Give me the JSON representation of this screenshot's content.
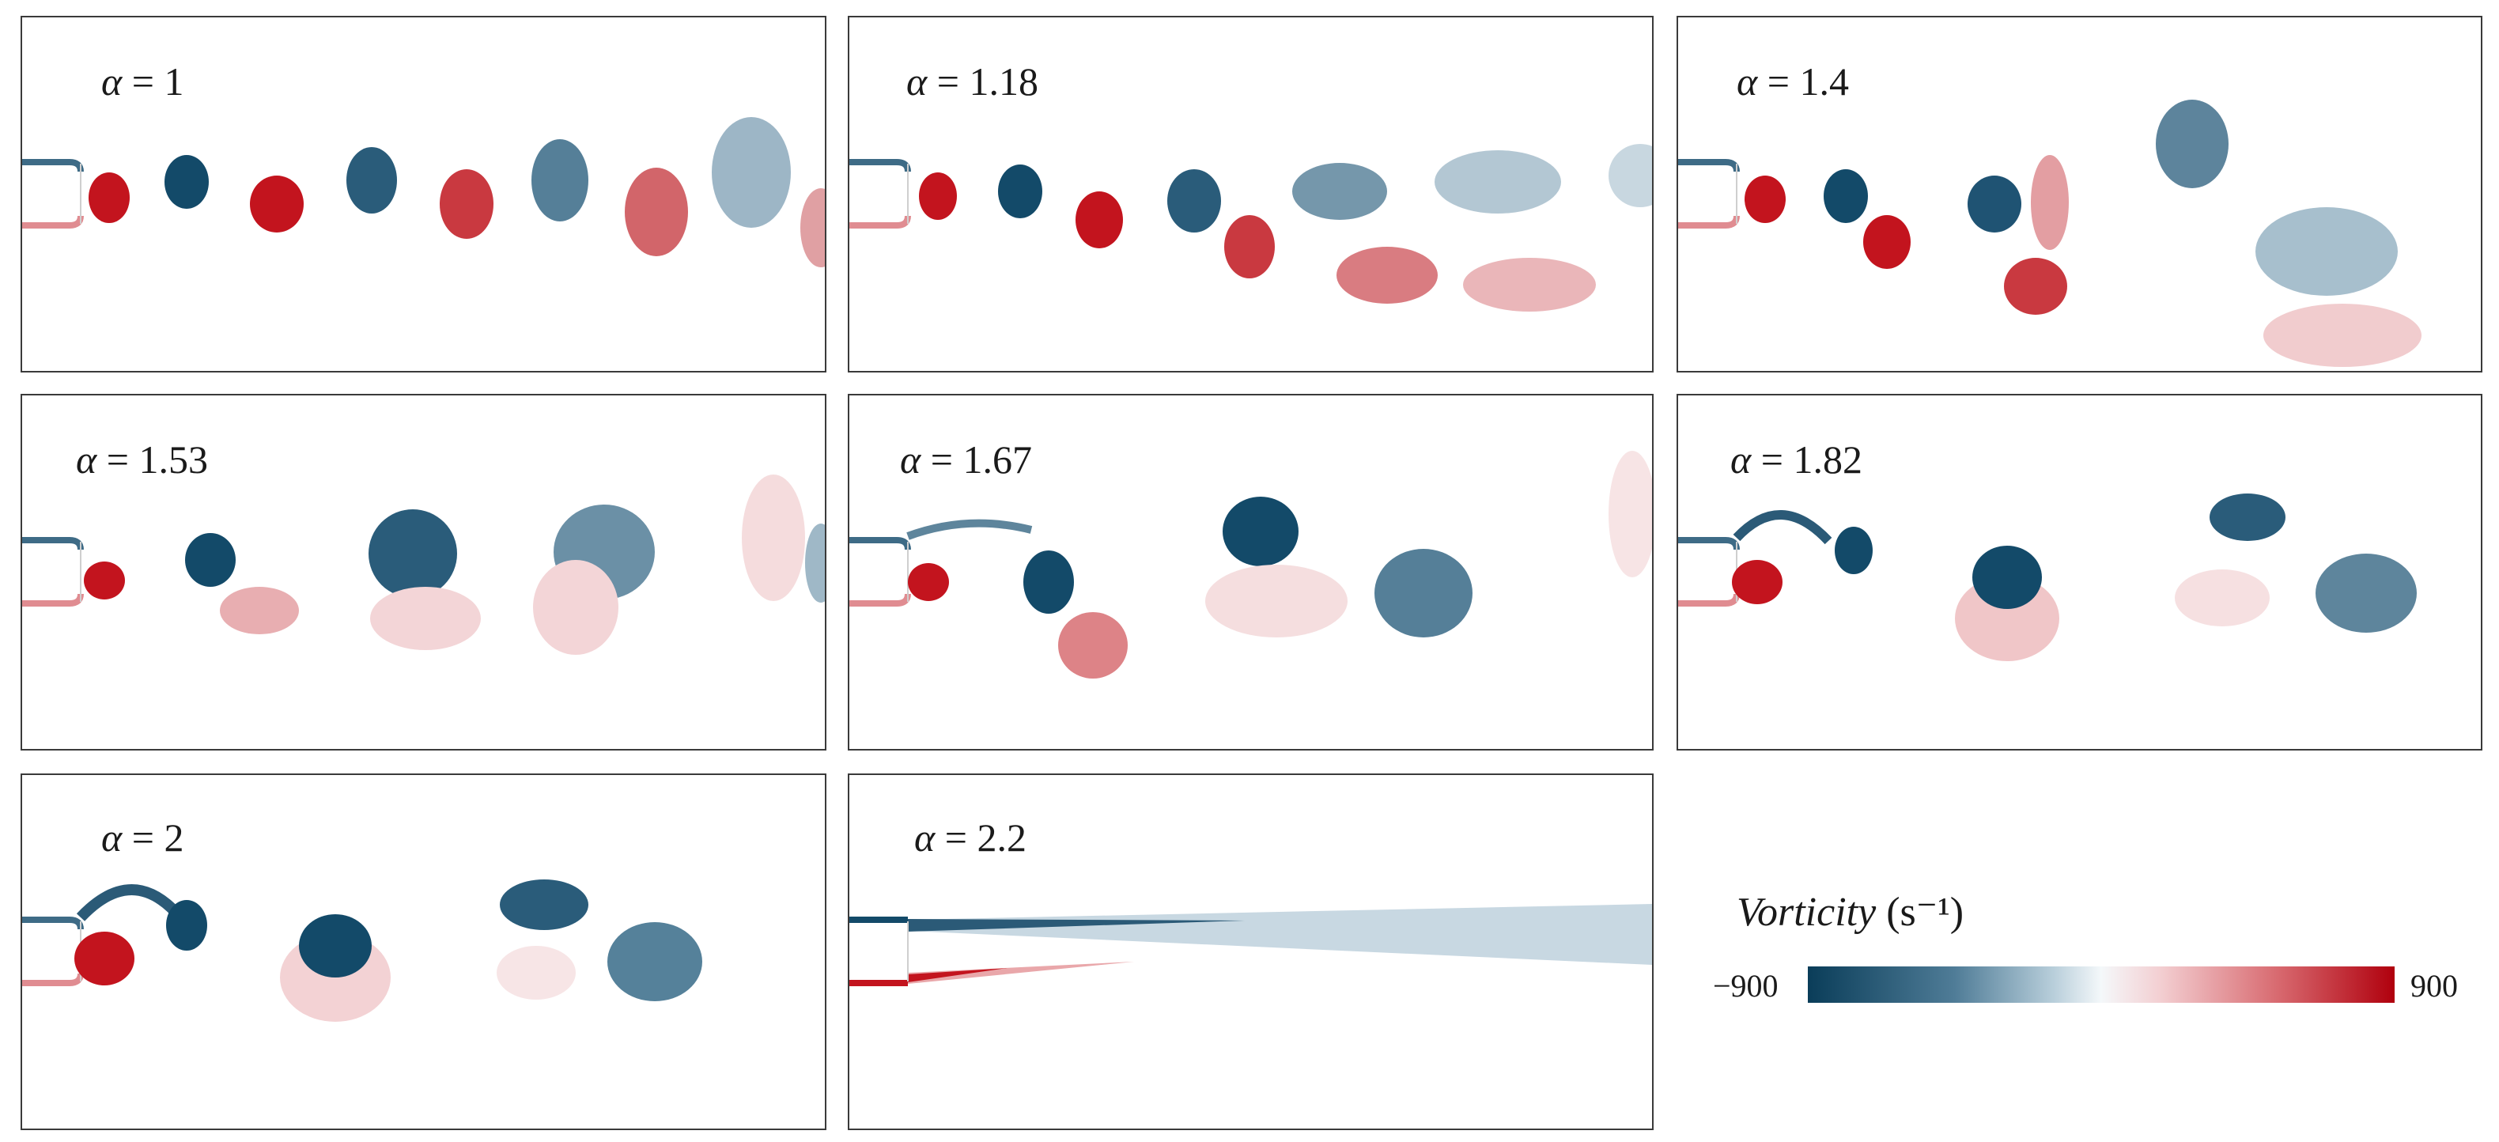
{
  "panels": [
    {
      "label": "1"
    },
    {
      "label": "1.18"
    },
    {
      "label": "1.4"
    },
    {
      "label": "1.53"
    },
    {
      "label": "1.67"
    },
    {
      "label": "1.82"
    },
    {
      "label": "2"
    },
    {
      "label": "2.2"
    }
  ],
  "symbol": "α",
  "legend": {
    "title_italic": "Vorticity",
    "unit": "(s⁻¹)",
    "min": "−900",
    "max": "900"
  },
  "colors": {
    "negative": "#0a3d59",
    "positive": "#b0000d",
    "neutral": "#ffffff"
  }
}
